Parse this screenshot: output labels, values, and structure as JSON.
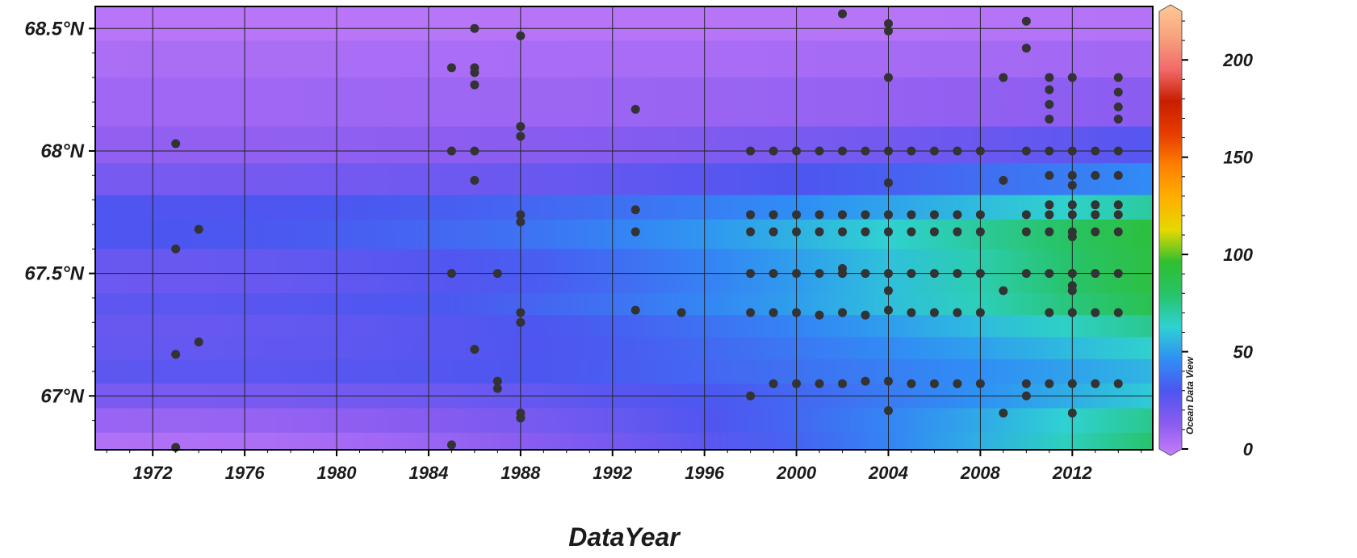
{
  "chart_data": {
    "type": "heatmap",
    "title": "",
    "xlabel": "DataYear",
    "ylabel": "",
    "watermark": "Ocean Data View",
    "xlim": [
      1969.5,
      2015.5
    ],
    "ylim": [
      66.78,
      68.59
    ],
    "x_ticks": [
      1972,
      1976,
      1980,
      1984,
      1988,
      1992,
      1996,
      2000,
      2004,
      2008,
      2012
    ],
    "x_tick_labels": [
      "1972",
      "1976",
      "1980",
      "1984",
      "1988",
      "1992",
      "1996",
      "2000",
      "2004",
      "2008",
      "2012"
    ],
    "y_ticks": [
      67.0,
      67.5,
      68.0,
      68.5
    ],
    "y_tick_labels": [
      "67°N",
      "67.5°N",
      "68°N",
      "68.5°N"
    ],
    "grid": true,
    "colorbar": {
      "min": 0,
      "max": 225,
      "ticks": [
        0,
        50,
        100,
        150,
        200
      ],
      "tick_labels": [
        "0",
        "50",
        "100",
        "150",
        "200"
      ],
      "colors": [
        "#c77dfa",
        "#8a5cf0",
        "#4d55f0",
        "#2f8ff5",
        "#2fd2d2",
        "#27c36a",
        "#2fbf2f",
        "#e6d800",
        "#ffb000",
        "#ff8000",
        "#e63c00",
        "#c81e00",
        "#f26a6a",
        "#f7a37d",
        "#ffc896"
      ]
    },
    "field_bands": [
      {
        "lat": 68.59,
        "base": 2,
        "peak": 2
      },
      {
        "lat": 68.45,
        "base": 6,
        "peak": 8
      },
      {
        "lat": 68.3,
        "base": 9,
        "peak": 12
      },
      {
        "lat": 68.1,
        "base": 12,
        "peak": 20
      },
      {
        "lat": 67.95,
        "base": 16,
        "peak": 40
      },
      {
        "lat": 67.82,
        "base": 26,
        "peak": 55
      },
      {
        "lat": 67.72,
        "base": 36,
        "peak": 90
      },
      {
        "lat": 67.6,
        "base": 28,
        "peak": 95
      },
      {
        "lat": 67.5,
        "base": 22,
        "peak": 88
      },
      {
        "lat": 67.42,
        "base": 26,
        "peak": 95
      },
      {
        "lat": 67.33,
        "base": 30,
        "peak": 80
      },
      {
        "lat": 67.24,
        "base": 20,
        "peak": 70
      },
      {
        "lat": 67.15,
        "base": 32,
        "peak": 60
      },
      {
        "lat": 67.05,
        "base": 24,
        "peak": 55
      },
      {
        "lat": 66.95,
        "base": 16,
        "peak": 70
      },
      {
        "lat": 66.85,
        "base": 8,
        "peak": 80
      },
      {
        "lat": 66.78,
        "base": 4,
        "peak": 80
      }
    ],
    "stations": [
      [
        1973,
        68.03
      ],
      [
        1973,
        67.6
      ],
      [
        1973,
        67.17
      ],
      [
        1973,
        66.79
      ],
      [
        1974,
        67.68
      ],
      [
        1974,
        67.22
      ],
      [
        1985,
        68.34
      ],
      [
        1985,
        68.0
      ],
      [
        1985,
        67.5
      ],
      [
        1985,
        66.8
      ],
      [
        1986,
        68.5
      ],
      [
        1986,
        68.34
      ],
      [
        1986,
        68.32
      ],
      [
        1986,
        68.27
      ],
      [
        1986,
        68.0
      ],
      [
        1986,
        67.88
      ],
      [
        1986,
        67.19
      ],
      [
        1987,
        67.5
      ],
      [
        1987,
        67.06
      ],
      [
        1987,
        67.03
      ],
      [
        1988,
        68.47
      ],
      [
        1988,
        68.1
      ],
      [
        1988,
        68.06
      ],
      [
        1988,
        67.74
      ],
      [
        1988,
        67.71
      ],
      [
        1988,
        67.34
      ],
      [
        1988,
        67.3
      ],
      [
        1988,
        66.93
      ],
      [
        1988,
        66.91
      ],
      [
        1993,
        68.17
      ],
      [
        1993,
        67.76
      ],
      [
        1993,
        67.67
      ],
      [
        1993,
        67.35
      ],
      [
        1995,
        67.34
      ],
      [
        1998,
        68.0
      ],
      [
        1998,
        67.74
      ],
      [
        1998,
        67.67
      ],
      [
        1998,
        67.5
      ],
      [
        1998,
        67.34
      ],
      [
        1998,
        67.0
      ],
      [
        1999,
        68.0
      ],
      [
        1999,
        67.74
      ],
      [
        1999,
        67.67
      ],
      [
        1999,
        67.5
      ],
      [
        1999,
        67.34
      ],
      [
        1999,
        67.05
      ],
      [
        2000,
        68.0
      ],
      [
        2000,
        67.74
      ],
      [
        2000,
        67.67
      ],
      [
        2000,
        67.5
      ],
      [
        2000,
        67.34
      ],
      [
        2000,
        67.05
      ],
      [
        2001,
        68.0
      ],
      [
        2001,
        67.74
      ],
      [
        2001,
        67.67
      ],
      [
        2001,
        67.5
      ],
      [
        2001,
        67.33
      ],
      [
        2001,
        67.05
      ],
      [
        2002,
        68.56
      ],
      [
        2002,
        68.0
      ],
      [
        2002,
        67.74
      ],
      [
        2002,
        67.67
      ],
      [
        2002,
        67.52
      ],
      [
        2002,
        67.5
      ],
      [
        2002,
        67.34
      ],
      [
        2002,
        67.05
      ],
      [
        2003,
        68.0
      ],
      [
        2003,
        67.74
      ],
      [
        2003,
        67.67
      ],
      [
        2003,
        67.5
      ],
      [
        2003,
        67.33
      ],
      [
        2003,
        67.06
      ],
      [
        2004,
        68.52
      ],
      [
        2004,
        68.49
      ],
      [
        2004,
        68.3
      ],
      [
        2004,
        68.0
      ],
      [
        2004,
        67.87
      ],
      [
        2004,
        67.74
      ],
      [
        2004,
        67.67
      ],
      [
        2004,
        67.5
      ],
      [
        2004,
        67.43
      ],
      [
        2004,
        67.35
      ],
      [
        2004,
        67.06
      ],
      [
        2004,
        66.94
      ],
      [
        2005,
        68.0
      ],
      [
        2005,
        67.74
      ],
      [
        2005,
        67.67
      ],
      [
        2005,
        67.5
      ],
      [
        2005,
        67.34
      ],
      [
        2005,
        67.05
      ],
      [
        2006,
        68.0
      ],
      [
        2006,
        67.74
      ],
      [
        2006,
        67.67
      ],
      [
        2006,
        67.5
      ],
      [
        2006,
        67.34
      ],
      [
        2006,
        67.05
      ],
      [
        2007,
        68.0
      ],
      [
        2007,
        67.74
      ],
      [
        2007,
        67.67
      ],
      [
        2007,
        67.5
      ],
      [
        2007,
        67.34
      ],
      [
        2007,
        67.05
      ],
      [
        2008,
        68.0
      ],
      [
        2008,
        67.74
      ],
      [
        2008,
        67.67
      ],
      [
        2008,
        67.5
      ],
      [
        2008,
        67.34
      ],
      [
        2008,
        67.05
      ],
      [
        2009,
        68.3
      ],
      [
        2009,
        67.88
      ],
      [
        2009,
        67.43
      ],
      [
        2009,
        66.93
      ],
      [
        2010,
        68.53
      ],
      [
        2010,
        68.42
      ],
      [
        2010,
        68.0
      ],
      [
        2010,
        67.74
      ],
      [
        2010,
        67.67
      ],
      [
        2010,
        67.5
      ],
      [
        2010,
        67.05
      ],
      [
        2010,
        67.0
      ],
      [
        2011,
        68.3
      ],
      [
        2011,
        68.25
      ],
      [
        2011,
        68.19
      ],
      [
        2011,
        68.13
      ],
      [
        2011,
        68.0
      ],
      [
        2011,
        67.9
      ],
      [
        2011,
        67.78
      ],
      [
        2011,
        67.74
      ],
      [
        2011,
        67.67
      ],
      [
        2011,
        67.5
      ],
      [
        2011,
        67.34
      ],
      [
        2011,
        67.05
      ],
      [
        2012,
        68.3
      ],
      [
        2012,
        68.0
      ],
      [
        2012,
        67.9
      ],
      [
        2012,
        67.86
      ],
      [
        2012,
        67.78
      ],
      [
        2012,
        67.74
      ],
      [
        2012,
        67.67
      ],
      [
        2012,
        67.65
      ],
      [
        2012,
        67.5
      ],
      [
        2012,
        67.45
      ],
      [
        2012,
        67.43
      ],
      [
        2012,
        67.34
      ],
      [
        2012,
        67.05
      ],
      [
        2012,
        66.93
      ],
      [
        2013,
        68.0
      ],
      [
        2013,
        67.9
      ],
      [
        2013,
        67.78
      ],
      [
        2013,
        67.74
      ],
      [
        2013,
        67.67
      ],
      [
        2013,
        67.5
      ],
      [
        2013,
        67.34
      ],
      [
        2013,
        67.05
      ],
      [
        2014,
        68.3
      ],
      [
        2014,
        68.24
      ],
      [
        2014,
        68.18
      ],
      [
        2014,
        68.13
      ],
      [
        2014,
        68.0
      ],
      [
        2014,
        67.9
      ],
      [
        2014,
        67.78
      ],
      [
        2014,
        67.74
      ],
      [
        2014,
        67.67
      ],
      [
        2014,
        67.5
      ],
      [
        2014,
        67.34
      ],
      [
        2014,
        67.05
      ]
    ]
  }
}
